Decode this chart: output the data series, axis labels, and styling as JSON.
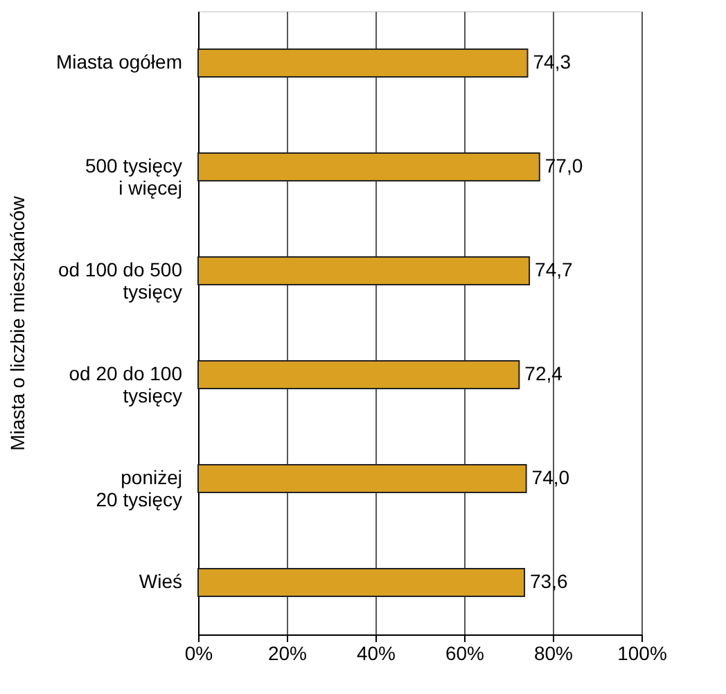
{
  "chart_data": {
    "type": "bar",
    "orientation": "horizontal",
    "ylabel": "Miasta o liczbie mieszkańców",
    "categories": [
      "Miasta ogółem",
      "500 tysięcy\ni więcej",
      "od 100 do 500\ntysięcy",
      "od 20 do 100\ntysięcy",
      "poniżej\n20 tysięcy",
      "Wieś"
    ],
    "values": [
      74.3,
      77.0,
      74.7,
      72.4,
      74.0,
      73.6
    ],
    "value_labels": [
      "74,3",
      "77,0",
      "74,7",
      "72,4",
      "74,0",
      "73,6"
    ],
    "color": "#d9a021",
    "xlim": [
      0,
      100
    ],
    "xticks": [
      {
        "value": 0,
        "label": "0%"
      },
      {
        "value": 20,
        "label": "20%"
      },
      {
        "value": 40,
        "label": "40%"
      },
      {
        "value": 60,
        "label": "60%"
      },
      {
        "value": 80,
        "label": "80%"
      },
      {
        "value": 100,
        "label": "100%"
      }
    ],
    "grid": "x"
  }
}
